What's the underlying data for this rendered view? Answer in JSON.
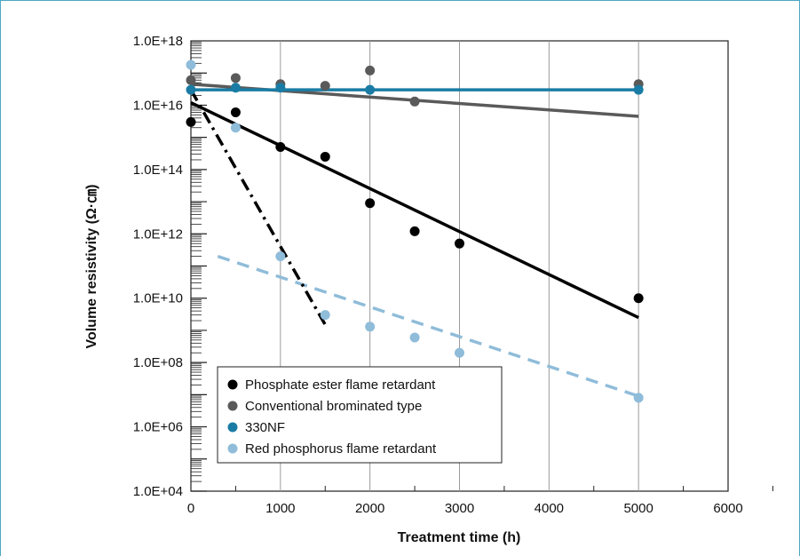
{
  "chart_data": {
    "type": "scatter",
    "xlabel": "Treatment time (h)",
    "ylabel": "Volume resistivity (Ω·㎝)",
    "xlim": [
      0,
      6000
    ],
    "ylim": [
      10000,
      1e+18
    ],
    "y_scale": "log",
    "x_ticks": [
      0,
      1000,
      2000,
      3000,
      4000,
      5000,
      6000
    ],
    "x_tick_labels": [
      "0",
      "1000",
      "2000",
      "3000",
      "4000",
      "5000",
      "6000"
    ],
    "y_ticks": [
      10000,
      1000000,
      100000000,
      10000000000,
      1000000000000,
      100000000000000,
      10000000000000000,
      1e+18
    ],
    "y_tick_labels": [
      "1.0E+04",
      "1.0E+06",
      "1.0E+08",
      "1.0E+10",
      "1.0E+12",
      "1.0E+14",
      "1.0E+16",
      "1.0E+18"
    ],
    "grid": true,
    "legend_position": "bottom-left",
    "series": [
      {
        "name": "Phosphate ester flame retardant",
        "color": "#000000",
        "points": [
          [
            0,
            3000000000000000.0
          ],
          [
            500,
            6000000000000000.0
          ],
          [
            1000,
            500000000000000.0
          ],
          [
            1500,
            250000000000000.0
          ],
          [
            2000,
            9000000000000.0
          ],
          [
            2500,
            1200000000000.0
          ],
          [
            3000,
            500000000000.0
          ],
          [
            5000,
            10000000000.0
          ]
        ],
        "fit_line": {
          "style": "solid",
          "from": [
            0,
            1.2e+16
          ],
          "to": [
            5000,
            2500000000.0
          ]
        }
      },
      {
        "name": "Conventional brominated type",
        "color": "#5a5a5a",
        "points": [
          [
            0,
            6e+16
          ],
          [
            500,
            7e+16
          ],
          [
            1000,
            4.5e+16
          ],
          [
            1500,
            4e+16
          ],
          [
            2000,
            1.2e+17
          ],
          [
            2500,
            1.3e+16
          ],
          [
            5000,
            4.5e+16
          ]
        ],
        "fit_line": {
          "style": "solid",
          "from": [
            0,
            4.5e+16
          ],
          "to": [
            5000,
            4500000000000000.0
          ]
        }
      },
      {
        "name": "330NF",
        "color": "#1a7ca4",
        "points": [
          [
            0,
            3e+16
          ],
          [
            500,
            3.5e+16
          ],
          [
            1000,
            3.5e+16
          ],
          [
            2000,
            3e+16
          ],
          [
            5000,
            3e+16
          ]
        ],
        "fit_line": {
          "style": "solid",
          "from": [
            0,
            3e+16
          ],
          "to": [
            5000,
            3e+16
          ]
        }
      },
      {
        "name": "Red phosphorus flame retardant",
        "color": "#8fbcd9",
        "points": [
          [
            0,
            1.8e+17
          ],
          [
            500,
            2000000000000000.0
          ],
          [
            1000,
            200000000000.0
          ],
          [
            1500,
            3000000000.0
          ],
          [
            2000,
            1300000000.0
          ],
          [
            2500,
            600000000.0
          ],
          [
            3000,
            200000000.0
          ],
          [
            5000,
            8000000.0
          ]
        ],
        "fit_line": {
          "style": "dashed",
          "from": [
            300,
            200000000000.0
          ],
          "to": [
            5000,
            9000000.0
          ]
        },
        "extra_line": {
          "style": "dash-dot",
          "color": "#000000",
          "from": [
            0,
            3e+16
          ],
          "to": [
            1500,
            1500000000.0
          ]
        }
      }
    ]
  }
}
